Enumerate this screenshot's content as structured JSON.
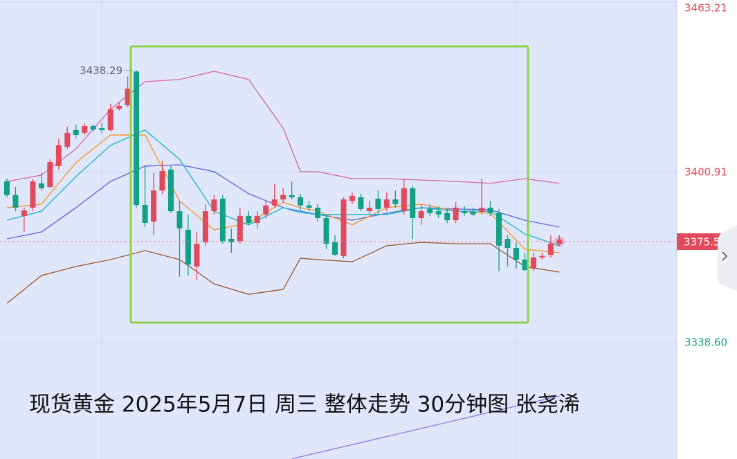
{
  "chart_data": {
    "type": "candlestick",
    "title": "现货黄金 2025年5月7日 周三 整体走势 30分钟图 张尧浠",
    "up_color": "#e04a5a",
    "down_color": "#13a085",
    "xlim": [
      -0.8,
      77.6
    ],
    "ylim": [
      3296.05,
      3463.98
    ],
    "yticks": [
      3463.21,
      3400.91,
      {
        "value": 3338.6,
        "label": "3338.60"
      }
    ],
    "grid": true,
    "candles": {
      "open": [
        3397.6,
        3392.6,
        3385.0,
        3388.0,
        3396.9,
        3395.6,
        3403.2,
        3410.3,
        3416.4,
        3415.4,
        3417.9,
        3417.1,
        3416.4,
        3424.2,
        3425.5,
        3437.8,
        3389.0,
        3382.9,
        3394.3,
        3401.9,
        3386.7,
        3379.9,
        3366.5,
        3375.3,
        3386.7,
        3391.3,
        3376.6,
        3375.8,
        3385.0,
        3382.4,
        3385.5,
        3388.8,
        3391.0,
        3392.6,
        3391.8,
        3388.8,
        3388.0,
        3384.2,
        3375.3,
        3370.3,
        3390.5,
        3391.8,
        3386.7,
        3391.3,
        3388.0,
        3391.0,
        3386.7,
        3395.1,
        3384.2,
        3387.5,
        3386.7,
        3386.0,
        3383.4,
        3386.7,
        3386.5,
        3386.5,
        3388.0,
        3386.0,
        3376.6,
        3373.3,
        3369.0,
        3365.7,
        3369.8,
        3370.8,
        3374.8
      ],
      "high": [
        3398.6,
        3395.6,
        3388.0,
        3398.6,
        3400.7,
        3405.7,
        3413.3,
        3417.6,
        3418.4,
        3418.9,
        3418.4,
        3418.9,
        3426.0,
        3426.5,
        3436.1,
        3438.29,
        3403.2,
        3400.7,
        3405.2,
        3403.2,
        3390.5,
        3385.5,
        3379.1,
        3389.3,
        3392.6,
        3392.6,
        3380.4,
        3388.0,
        3386.7,
        3386.7,
        3390.5,
        3396.6,
        3395.1,
        3397.6,
        3393.1,
        3390.5,
        3389.3,
        3385.5,
        3377.9,
        3391.8,
        3393.6,
        3393.1,
        3390.5,
        3394.3,
        3393.6,
        3394.3,
        3398.6,
        3396.1,
        3389.3,
        3389.3,
        3388.5,
        3387.5,
        3390.0,
        3388.5,
        3388.0,
        3398.6,
        3390.5,
        3387.5,
        3377.9,
        3375.3,
        3371.5,
        3371.5,
        3371.5,
        3377.9,
        3377.9
      ],
      "low": [
        3391.8,
        3386.7,
        3379.1,
        3386.7,
        3394.3,
        3395.1,
        3401.9,
        3409.5,
        3413.3,
        3414.6,
        3415.9,
        3415.4,
        3415.9,
        3423.5,
        3424.7,
        3388.0,
        3380.9,
        3377.9,
        3393.1,
        3386.0,
        3362.7,
        3363.2,
        3361.4,
        3374.1,
        3385.5,
        3374.8,
        3371.5,
        3374.8,
        3381.7,
        3380.4,
        3384.2,
        3388.0,
        3390.0,
        3391.0,
        3386.7,
        3386.7,
        3382.9,
        3372.8,
        3370.3,
        3369.5,
        3389.3,
        3386.7,
        3385.5,
        3385.5,
        3386.7,
        3388.0,
        3385.5,
        3376.6,
        3381.7,
        3385.0,
        3384.2,
        3382.4,
        3382.4,
        3385.0,
        3385.0,
        3385.5,
        3385.0,
        3364.7,
        3366.5,
        3365.7,
        3364.7,
        3364.7,
        3369.0,
        3369.8,
        3374.1
      ],
      "close": [
        3392.6,
        3388.0,
        3387.0,
        3397.6,
        3395.1,
        3404.7,
        3410.8,
        3415.4,
        3414.6,
        3417.9,
        3416.6,
        3416.4,
        3424.0,
        3425.2,
        3431.6,
        3389.0,
        3382.4,
        3394.3,
        3401.4,
        3386.7,
        3380.4,
        3367.2,
        3374.8,
        3386.7,
        3391.0,
        3375.8,
        3375.3,
        3385.0,
        3382.4,
        3385.0,
        3388.8,
        3391.0,
        3392.6,
        3391.8,
        3388.8,
        3388.0,
        3384.2,
        3374.8,
        3370.8,
        3391.0,
        3392.3,
        3387.5,
        3388.0,
        3387.5,
        3391.0,
        3389.3,
        3395.1,
        3384.2,
        3386.7,
        3386.0,
        3385.5,
        3383.4,
        3388.0,
        3386.0,
        3385.5,
        3388.0,
        3386.0,
        3374.1,
        3373.3,
        3369.0,
        3365.2,
        3369.8,
        3370.3,
        3374.8,
        3375.57
      ]
    },
    "series": [
      {
        "color": "#d46fb0",
        "x": [
          0,
          4,
          8,
          12,
          16,
          20,
          24,
          28,
          32,
          34,
          36,
          40,
          44,
          48,
          52,
          56,
          60,
          64
        ],
        "values": [
          3397.6,
          3399.9,
          3409.5,
          3424.0,
          3434.1,
          3434.9,
          3437.9,
          3434.9,
          3417.1,
          3401.2,
          3401.2,
          3398.6,
          3398.6,
          3398.1,
          3397.6,
          3396.9,
          3398.6,
          3396.9
        ]
      },
      {
        "color": "#5d6fd8",
        "x": [
          0,
          4,
          8,
          12,
          16,
          20,
          24,
          28,
          32,
          34,
          36,
          40,
          44,
          48,
          52,
          56,
          60,
          64
        ],
        "values": [
          3376.6,
          3379.1,
          3388.0,
          3397.6,
          3403.2,
          3403.7,
          3401.2,
          3393.1,
          3388.0,
          3386.7,
          3385.5,
          3383.4,
          3386.0,
          3388.0,
          3387.5,
          3387.2,
          3383.4,
          3380.9
        ]
      },
      {
        "color": "#a0603a",
        "x": [
          0,
          4,
          8,
          12,
          16,
          20,
          24,
          28,
          32,
          34,
          36,
          40,
          44,
          48,
          52,
          56,
          60,
          64
        ],
        "values": [
          3353.0,
          3363.2,
          3366.5,
          3369.0,
          3372.3,
          3369.0,
          3360.1,
          3356.3,
          3358.1,
          3369.5,
          3369.0,
          3368.2,
          3374.1,
          3375.3,
          3374.8,
          3374.8,
          3366.5,
          3364.4
        ]
      },
      {
        "color": "#f39a2c",
        "x": [
          0,
          4,
          8,
          12,
          16,
          20,
          24,
          28,
          32,
          34,
          36,
          40,
          44,
          48,
          52,
          56,
          60,
          64
        ],
        "values": [
          3388.0,
          3389.3,
          3404.5,
          3414.6,
          3414.6,
          3390.5,
          3379.9,
          3382.4,
          3390.0,
          3388.0,
          3386.7,
          3381.7,
          3388.0,
          3389.3,
          3386.7,
          3386.0,
          3372.8,
          3371.5
        ]
      },
      {
        "color": "#1fb8cf",
        "x": [
          0,
          4,
          8,
          12,
          16,
          20,
          24,
          28,
          32,
          34,
          36,
          40,
          44,
          48,
          52,
          56,
          60,
          64
        ],
        "values": [
          3383.4,
          3386.7,
          3399.4,
          3410.8,
          3416.4,
          3405.7,
          3386.7,
          3381.7,
          3388.0,
          3386.2,
          3385.5,
          3385.5,
          3385.5,
          3388.0,
          3386.7,
          3386.7,
          3378.4,
          3374.1
        ]
      },
      {
        "color": "#9a7fe0",
        "x": [
          33,
          64
        ],
        "values": [
          3296.1,
          3319.1
        ]
      }
    ]
  }
}
